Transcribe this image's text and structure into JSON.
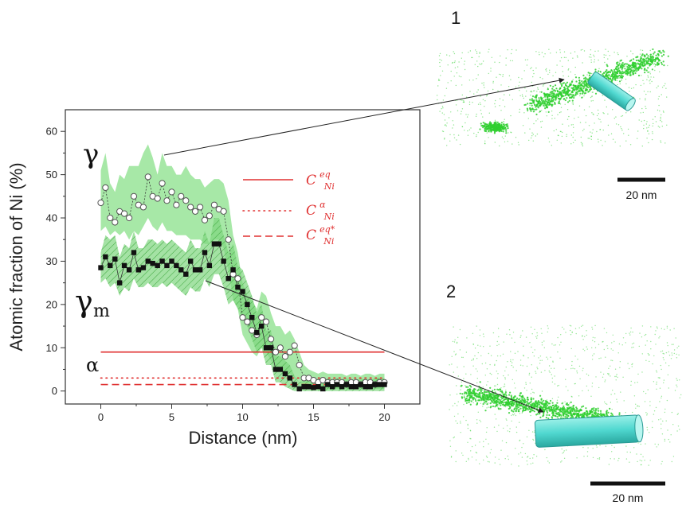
{
  "chart_data": {
    "type": "line",
    "title": "",
    "xlabel": "Distance (nm)",
    "ylabel": "Atomic fraction of Ni (%)",
    "xlim": [
      -2.5,
      22.5
    ],
    "ylim": [
      -3,
      65
    ],
    "xticks": [
      0,
      5,
      10,
      15,
      20
    ],
    "yticks": [
      0,
      10,
      20,
      30,
      40,
      50,
      60
    ],
    "x_tick_labels": [
      "0",
      "5",
      "10",
      "15",
      "20"
    ],
    "y_tick_labels": [
      "0",
      "10",
      "20",
      "30",
      "40",
      "50",
      "60"
    ],
    "grid": false,
    "legend_position": "upper-right",
    "series": [
      {
        "name": "γ",
        "marker": "open-circle",
        "color": "#111111",
        "band_color": "#8ae08a",
        "x": [
          0.0,
          0.33,
          0.66,
          1.0,
          1.33,
          1.66,
          2.0,
          2.33,
          2.66,
          3.0,
          3.33,
          3.66,
          4.0,
          4.33,
          4.66,
          5.0,
          5.33,
          5.66,
          6.0,
          6.33,
          6.66,
          7.0,
          7.33,
          7.66,
          8.0,
          8.33,
          8.66,
          9.0,
          9.33,
          9.66,
          10.0,
          10.33,
          10.66,
          11.0,
          11.33,
          11.66,
          12.0,
          12.33,
          12.66,
          13.0,
          13.33,
          13.66,
          14.0,
          14.33,
          14.66,
          15.0,
          15.33,
          15.66,
          16.0,
          16.33,
          16.66,
          17.0,
          17.33,
          17.66,
          18.0,
          18.33,
          18.66,
          19.0,
          19.33,
          19.66,
          20.0
        ],
        "y": [
          43.5,
          47,
          40,
          39,
          41.5,
          41,
          40,
          45,
          43,
          42.5,
          49.5,
          45,
          44.5,
          48,
          44,
          46,
          43,
          45,
          44,
          42.5,
          41.5,
          42.5,
          39.5,
          40.5,
          43,
          42,
          41.5,
          35,
          27,
          26,
          17,
          16,
          14,
          13,
          17,
          16,
          12,
          9,
          10,
          8,
          9,
          10.5,
          6,
          3,
          3,
          2.5,
          2,
          2.5,
          2,
          2,
          2,
          2,
          1.5,
          2,
          2,
          1.5,
          2,
          2,
          1.5,
          2,
          2
        ],
        "band_lower": [
          37,
          38,
          36,
          37,
          36,
          37,
          35,
          37,
          36,
          38,
          40,
          38,
          37,
          39,
          37,
          37,
          36,
          36,
          36,
          35,
          35,
          35,
          34,
          34,
          35,
          35,
          33,
          28,
          21,
          19,
          13,
          11,
          9,
          8,
          10,
          9,
          7,
          5,
          5,
          4,
          4,
          3,
          2,
          1,
          1,
          0.5,
          0.5,
          0.5,
          0.5,
          0.5,
          0.5,
          0.5,
          0.5,
          0.5,
          0.5,
          0.5,
          0.5,
          0.5,
          0.5,
          0.5,
          0.5
        ],
        "band_upper": [
          51,
          55,
          48,
          46,
          50,
          49,
          52,
          52,
          52,
          55,
          57,
          54,
          50,
          55,
          52,
          52,
          50,
          50,
          52,
          50,
          49,
          49,
          47,
          48,
          49,
          49,
          48,
          44,
          36,
          32,
          25,
          22,
          21,
          19,
          23,
          22,
          18,
          15,
          15,
          13,
          14,
          12,
          9,
          6,
          5,
          4.5,
          4,
          4.5,
          4,
          4,
          4,
          4,
          3.5,
          4,
          4,
          3.5,
          4,
          4,
          3.5,
          4,
          4
        ]
      },
      {
        "name": "γ_m",
        "marker": "filled-square",
        "color": "#111111",
        "band_color": "#7ed67e",
        "x": [
          0.0,
          0.33,
          0.66,
          1.0,
          1.33,
          1.66,
          2.0,
          2.33,
          2.66,
          3.0,
          3.33,
          3.66,
          4.0,
          4.33,
          4.66,
          5.0,
          5.33,
          5.66,
          6.0,
          6.33,
          6.66,
          7.0,
          7.33,
          7.66,
          8.0,
          8.33,
          8.66,
          9.0,
          9.33,
          9.66,
          10.0,
          10.33,
          10.66,
          11.0,
          11.33,
          11.66,
          12.0,
          12.33,
          12.66,
          13.0,
          13.33,
          13.66,
          14.0,
          14.33,
          14.66,
          15.0,
          15.33,
          15.66,
          16.0,
          16.33,
          16.66,
          17.0,
          17.33,
          17.66,
          18.0,
          18.33,
          18.66,
          19.0,
          19.33,
          19.66,
          20.0
        ],
        "y": [
          28.5,
          31,
          29,
          30.5,
          25,
          29,
          28,
          32,
          28,
          28.5,
          30,
          29.5,
          29,
          30,
          29,
          30,
          29,
          28,
          27,
          30,
          28,
          28,
          32,
          29,
          34,
          34,
          30,
          26,
          28,
          24,
          23,
          20,
          17,
          13.5,
          15,
          10,
          10,
          5,
          5,
          4,
          3,
          1.5,
          0.5,
          1,
          1,
          0.8,
          1,
          0.5,
          1.5,
          1,
          1.5,
          1,
          1.5,
          1,
          1,
          1.5,
          1,
          1,
          1.5,
          1.5,
          1.5
        ],
        "band_lower": [
          25,
          26,
          24,
          25,
          22,
          24,
          23,
          26,
          24,
          24,
          25,
          24,
          24,
          25,
          24,
          25,
          24,
          23,
          22,
          24,
          23,
          23,
          26,
          24,
          27,
          27,
          24,
          20,
          21,
          19,
          17,
          15,
          12,
          9,
          10,
          6,
          6,
          2,
          2,
          1,
          0.5,
          0,
          0,
          0,
          0,
          0,
          0,
          0,
          0,
          0,
          0,
          0,
          0,
          0,
          0,
          0,
          0,
          0,
          0,
          0,
          0
        ],
        "band_upper": [
          32,
          36,
          35,
          36,
          31,
          34,
          33,
          37,
          33,
          33,
          35,
          35,
          34,
          35,
          34,
          35,
          34,
          33,
          32,
          35,
          33,
          33,
          37,
          34,
          40,
          40,
          36,
          32,
          34,
          29,
          28,
          25,
          22,
          18,
          20,
          14,
          14,
          8,
          8,
          7,
          6,
          3.5,
          2,
          2.5,
          2.5,
          2,
          2.5,
          2,
          3,
          2.5,
          3,
          2.5,
          3,
          2.5,
          2.5,
          3,
          2.5,
          2.5,
          3,
          3,
          3
        ]
      }
    ],
    "reference_lines": [
      {
        "label": "C_Ni^eq",
        "y": 9,
        "style": "solid",
        "x_range": [
          0,
          20
        ],
        "color": "#e03030"
      },
      {
        "label": "C_Ni^α",
        "y": 3,
        "style": "dotted",
        "x_range": [
          0,
          20
        ],
        "color": "#e03030"
      },
      {
        "label": "C_Ni^eq*",
        "y": 1.5,
        "style": "dashed",
        "x_range": [
          0,
          20
        ],
        "color": "#e03030"
      }
    ]
  },
  "legend": [
    {
      "style": "solid",
      "base": "C",
      "sub": "Ni",
      "sup": "eq"
    },
    {
      "style": "dotted",
      "base": "C",
      "sub": "Ni",
      "sup": "α"
    },
    {
      "style": "dashed",
      "base": "C",
      "sub": "Ni",
      "sup": "eq*"
    }
  ],
  "phase_labels": {
    "gamma": "γ",
    "gamma_m_base": "γ",
    "gamma_m_sub": "m",
    "alpha": "α"
  },
  "panels": [
    {
      "label": "1",
      "scale_bar": "20 nm"
    },
    {
      "label": "2",
      "scale_bar": "20 nm"
    }
  ],
  "colors": {
    "band_gamma": "#8ae08a",
    "band_gamma_m": "#7ed67e",
    "hatch": "#3ea83e",
    "reference": "#e03030",
    "apt_atoms": "#2fcf2f",
    "tube": "#50d8d0"
  }
}
